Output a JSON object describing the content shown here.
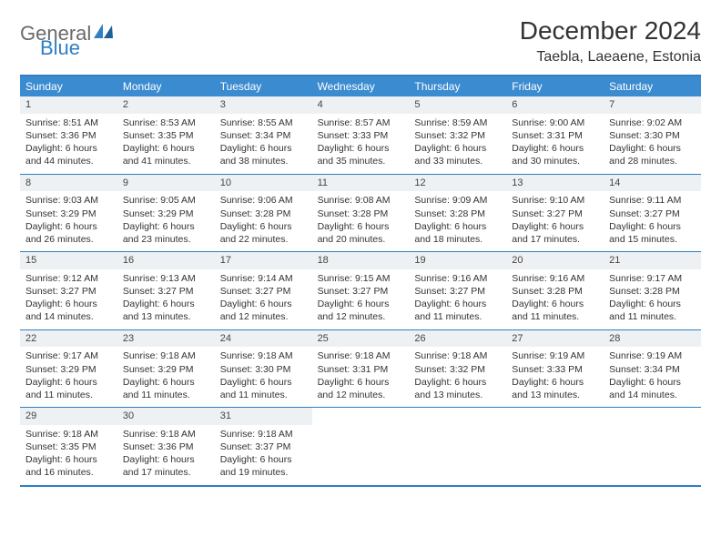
{
  "logo": {
    "text1": "General",
    "text2": "Blue"
  },
  "title": "December 2024",
  "location": "Taebla, Laeaene, Estonia",
  "colors": {
    "headerBg": "#3b8bd0",
    "border": "#2f7fc2",
    "dayNumBg": "#eef1f3",
    "text": "#333333",
    "logoGray": "#6a6a6a",
    "logoBlue": "#2f7fc2"
  },
  "dayNames": [
    "Sunday",
    "Monday",
    "Tuesday",
    "Wednesday",
    "Thursday",
    "Friday",
    "Saturday"
  ],
  "days": [
    {
      "n": "1",
      "sr": "8:51 AM",
      "ss": "3:36 PM",
      "dl": "6 hours and 44 minutes."
    },
    {
      "n": "2",
      "sr": "8:53 AM",
      "ss": "3:35 PM",
      "dl": "6 hours and 41 minutes."
    },
    {
      "n": "3",
      "sr": "8:55 AM",
      "ss": "3:34 PM",
      "dl": "6 hours and 38 minutes."
    },
    {
      "n": "4",
      "sr": "8:57 AM",
      "ss": "3:33 PM",
      "dl": "6 hours and 35 minutes."
    },
    {
      "n": "5",
      "sr": "8:59 AM",
      "ss": "3:32 PM",
      "dl": "6 hours and 33 minutes."
    },
    {
      "n": "6",
      "sr": "9:00 AM",
      "ss": "3:31 PM",
      "dl": "6 hours and 30 minutes."
    },
    {
      "n": "7",
      "sr": "9:02 AM",
      "ss": "3:30 PM",
      "dl": "6 hours and 28 minutes."
    },
    {
      "n": "8",
      "sr": "9:03 AM",
      "ss": "3:29 PM",
      "dl": "6 hours and 26 minutes."
    },
    {
      "n": "9",
      "sr": "9:05 AM",
      "ss": "3:29 PM",
      "dl": "6 hours and 23 minutes."
    },
    {
      "n": "10",
      "sr": "9:06 AM",
      "ss": "3:28 PM",
      "dl": "6 hours and 22 minutes."
    },
    {
      "n": "11",
      "sr": "9:08 AM",
      "ss": "3:28 PM",
      "dl": "6 hours and 20 minutes."
    },
    {
      "n": "12",
      "sr": "9:09 AM",
      "ss": "3:28 PM",
      "dl": "6 hours and 18 minutes."
    },
    {
      "n": "13",
      "sr": "9:10 AM",
      "ss": "3:27 PM",
      "dl": "6 hours and 17 minutes."
    },
    {
      "n": "14",
      "sr": "9:11 AM",
      "ss": "3:27 PM",
      "dl": "6 hours and 15 minutes."
    },
    {
      "n": "15",
      "sr": "9:12 AM",
      "ss": "3:27 PM",
      "dl": "6 hours and 14 minutes."
    },
    {
      "n": "16",
      "sr": "9:13 AM",
      "ss": "3:27 PM",
      "dl": "6 hours and 13 minutes."
    },
    {
      "n": "17",
      "sr": "9:14 AM",
      "ss": "3:27 PM",
      "dl": "6 hours and 12 minutes."
    },
    {
      "n": "18",
      "sr": "9:15 AM",
      "ss": "3:27 PM",
      "dl": "6 hours and 12 minutes."
    },
    {
      "n": "19",
      "sr": "9:16 AM",
      "ss": "3:27 PM",
      "dl": "6 hours and 11 minutes."
    },
    {
      "n": "20",
      "sr": "9:16 AM",
      "ss": "3:28 PM",
      "dl": "6 hours and 11 minutes."
    },
    {
      "n": "21",
      "sr": "9:17 AM",
      "ss": "3:28 PM",
      "dl": "6 hours and 11 minutes."
    },
    {
      "n": "22",
      "sr": "9:17 AM",
      "ss": "3:29 PM",
      "dl": "6 hours and 11 minutes."
    },
    {
      "n": "23",
      "sr": "9:18 AM",
      "ss": "3:29 PM",
      "dl": "6 hours and 11 minutes."
    },
    {
      "n": "24",
      "sr": "9:18 AM",
      "ss": "3:30 PM",
      "dl": "6 hours and 11 minutes."
    },
    {
      "n": "25",
      "sr": "9:18 AM",
      "ss": "3:31 PM",
      "dl": "6 hours and 12 minutes."
    },
    {
      "n": "26",
      "sr": "9:18 AM",
      "ss": "3:32 PM",
      "dl": "6 hours and 13 minutes."
    },
    {
      "n": "27",
      "sr": "9:19 AM",
      "ss": "3:33 PM",
      "dl": "6 hours and 13 minutes."
    },
    {
      "n": "28",
      "sr": "9:19 AM",
      "ss": "3:34 PM",
      "dl": "6 hours and 14 minutes."
    },
    {
      "n": "29",
      "sr": "9:18 AM",
      "ss": "3:35 PM",
      "dl": "6 hours and 16 minutes."
    },
    {
      "n": "30",
      "sr": "9:18 AM",
      "ss": "3:36 PM",
      "dl": "6 hours and 17 minutes."
    },
    {
      "n": "31",
      "sr": "9:18 AM",
      "ss": "3:37 PM",
      "dl": "6 hours and 19 minutes."
    }
  ],
  "labels": {
    "sunrise": "Sunrise: ",
    "sunset": "Sunset: ",
    "daylight": "Daylight: "
  }
}
